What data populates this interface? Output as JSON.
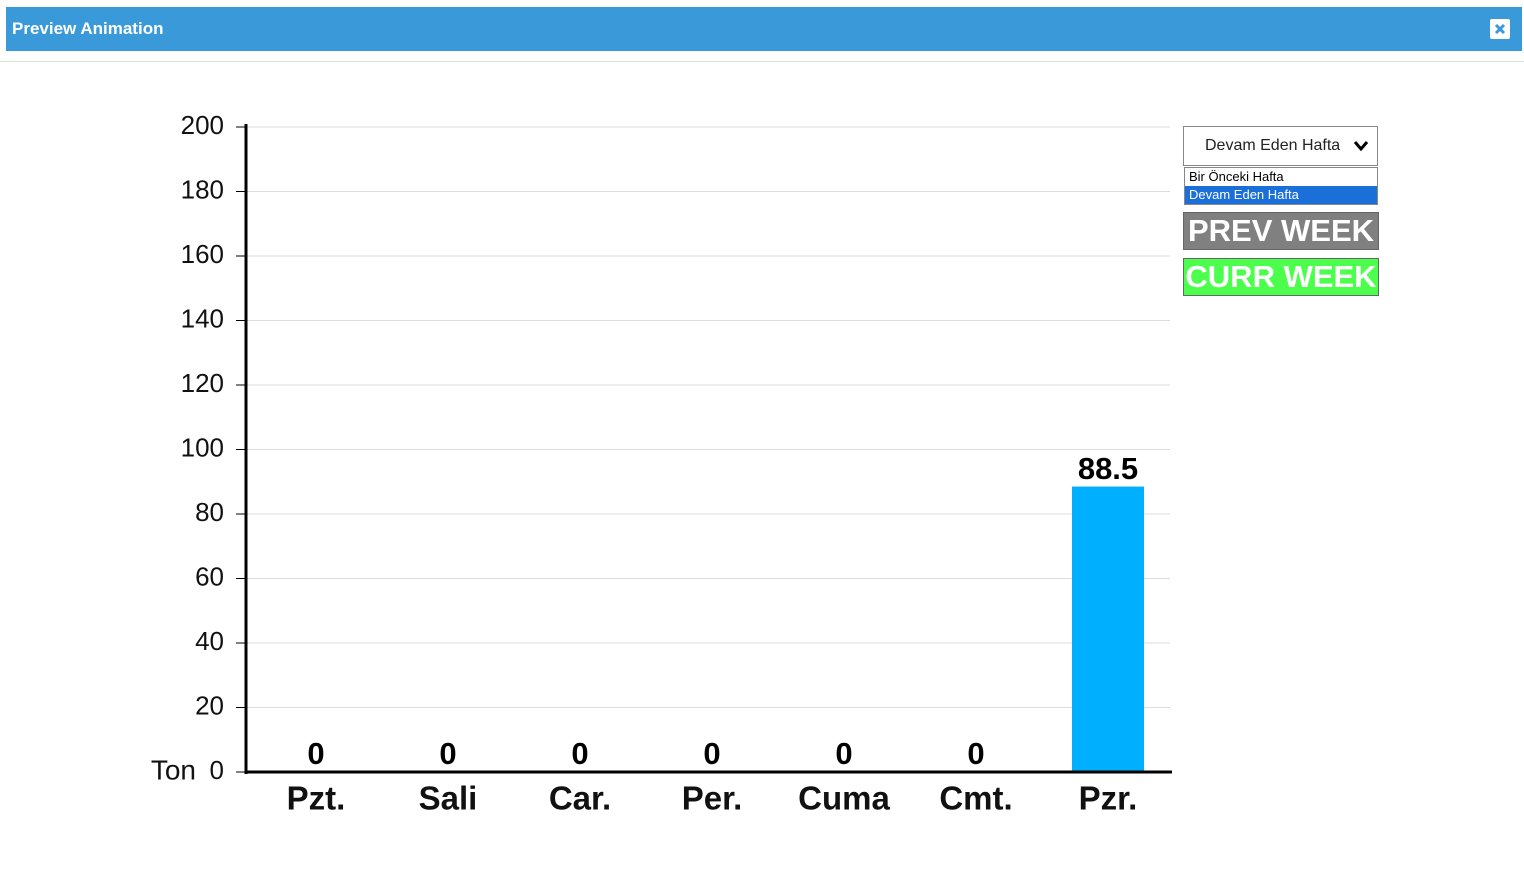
{
  "window": {
    "title": "Preview Animation"
  },
  "controls": {
    "select": "Devam Eden Hafta",
    "options": [
      "Bir Önceki Hafta",
      "Devam Eden Hafta"
    ],
    "buttons": [
      "PREV WEEK",
      "CURR WEEK"
    ]
  },
  "chart_data": {
    "type": "bar",
    "y_label": "Ton",
    "categories": [
      "Pzt.",
      "Sali",
      "Car.",
      "Per.",
      "Cuma",
      "Cmt.",
      "Pzr."
    ],
    "values": [
      0,
      0,
      0,
      0,
      0,
      0,
      88.5
    ],
    "color": "#00b0ff",
    "ylim": [
      0,
      200
    ],
    "yticks": [
      0,
      20,
      40,
      60,
      80,
      100,
      120,
      140,
      160,
      180,
      200
    ],
    "grid": true
  }
}
